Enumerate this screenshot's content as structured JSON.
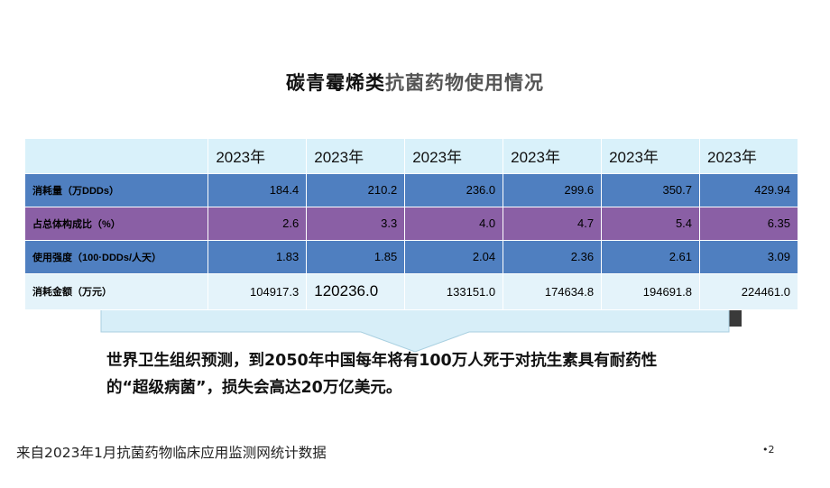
{
  "title": {
    "part1": "碳青霉烯类",
    "part2": "抗菌药物使用情况"
  },
  "table": {
    "headers": [
      "",
      "2023年",
      "2023年",
      "2023年",
      "2023年",
      "2023年",
      "2023年"
    ],
    "rows": [
      {
        "label": "消耗量（万DDDs）",
        "values": [
          "184.4",
          "210.2",
          "236.0",
          "299.6",
          "350.7",
          "429.94"
        ]
      },
      {
        "label": "占总体构成比（%）",
        "values": [
          "2.6",
          "3.3",
          "4.0",
          "4.7",
          "5.4",
          "6.35"
        ]
      },
      {
        "label": "使用强度（100·DDDs/人天）",
        "values": [
          "1.83",
          "1.85",
          "2.04",
          "2.36",
          "2.61",
          "3.09"
        ]
      },
      {
        "label": "消耗金额（万元）",
        "values": [
          "104917.3",
          "120236.0",
          "133151.0",
          "174634.8",
          "194691.8",
          "224461.0"
        ]
      }
    ]
  },
  "note": {
    "line1": "世界卫生组织预测，到2050年中国每年将有100万人死于对抗生素具有耐药性",
    "line2": "的“超级病菌”，损失会高达20万亿美元。"
  },
  "source": "来自2023年1月抗菌药物临床应用监测网统计数据",
  "page_number": "•2",
  "colors": {
    "row_blue": "#4f7fc0",
    "row_purple": "#8a5fa5",
    "row_light": "#e4f3fa",
    "header_bg": "#d9f1fa"
  }
}
